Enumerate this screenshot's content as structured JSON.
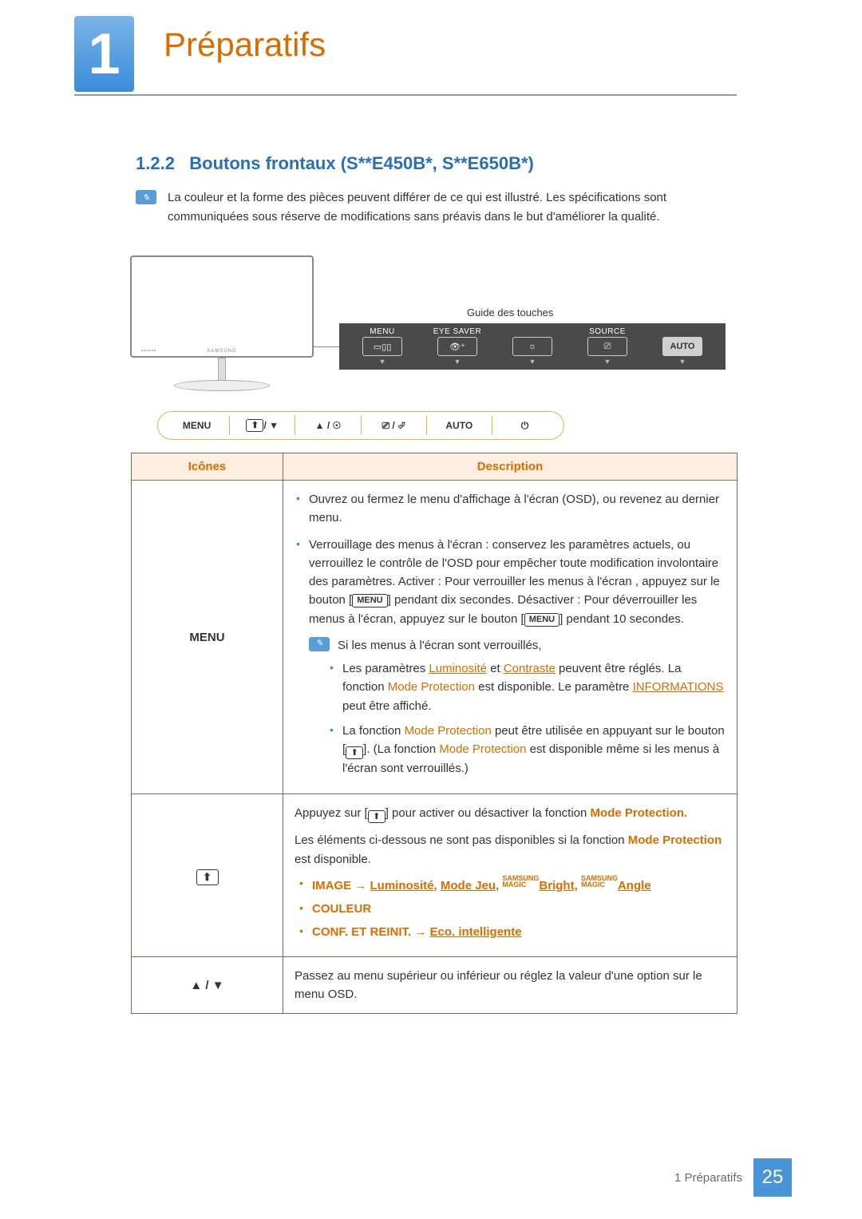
{
  "chapter": {
    "number": "1",
    "title": "Préparatifs"
  },
  "section": {
    "number": "1.2.2",
    "title": "Boutons frontaux (S**E450B*, S**E650B*)"
  },
  "note": "La couleur et la forme des pièces peuvent différer de ce qui est illustré. Les spécifications sont communiquées sous réserve de modifications sans préavis dans le but d'améliorer la qualité.",
  "diagram": {
    "touch_guide_label": "Guide des touches",
    "osd_items": [
      {
        "label": "MENU",
        "icon": "▭▯▯"
      },
      {
        "label": "EYE SAVER",
        "icon": "👁⁺"
      },
      {
        "label": "",
        "icon": "☼"
      },
      {
        "label": "SOURCE",
        "icon": "⎚"
      },
      {
        "label": "",
        "icon": "AUTO",
        "auto": true
      }
    ],
    "buttons": [
      "MENU",
      "icon-eye",
      "▲ / ☉",
      "⎚ / ⏎",
      "AUTO",
      "⏻"
    ]
  },
  "table": {
    "headers": [
      "Icônes",
      "Description"
    ],
    "row1": {
      "icon": "MENU",
      "b1": "Ouvrez ou fermez le menu d'affichage à l'écran (OSD), ou revenez au dernier menu.",
      "b2_a": "Verrouillage des menus à l'écran : conservez les paramètres actuels, ou verrouillez le contrôle de l'OSD pour empêcher toute modification involontaire des paramètres. Activer : Pour verrouiller les menus à l'écran , appuyez sur le bouton [",
      "b2_b": "] pendant dix secondes. Désactiver : Pour déverrouiller les menus à l'écran, appuyez sur le bouton [",
      "b2_c": "] pendant 10 secondes.",
      "subnote": "Si les menus à l'écran sont verrouillés,",
      "ib1_a": "Les paramètres ",
      "ib1_lum": "Luminosité",
      "ib1_et": " et ",
      "ib1_con": "Contraste",
      "ib1_b": " peuvent être réglés. La fonction ",
      "ib1_mp": "Mode Protection",
      "ib1_c": " est disponible. Le paramètre ",
      "ib1_info": "INFORMATIONS",
      "ib1_d": " peut être affiché.",
      "ib2_a": "La fonction ",
      "ib2_mp": "Mode Protection",
      "ib2_b": " peut être utilisée en appuyant sur le bouton [",
      "ib2_c": "]. (La fonction ",
      "ib2_mp2": "Mode Protection",
      "ib2_d": " est disponible même si les menus à l'écran sont verrouillés.)"
    },
    "row2": {
      "p1_a": "Appuyez sur [",
      "p1_b": "] pour activer ou désactiver la fonction ",
      "p1_mp": "Mode Protection",
      "p1_c": ".",
      "p2_a": "Les éléments ci-dessous ne sont pas disponibles si la fonction ",
      "p2_mp": "Mode Protection",
      "p2_b": " est disponible.",
      "li1_image": "IMAGE",
      "li1_arrow": " → ",
      "li1_lum": "Luminosité",
      "li1_c1": ", ",
      "li1_mj": "Mode Jeu",
      "li1_bright": "Bright",
      "li1_angle": "Angle",
      "li2": "COULEUR",
      "li3_a": "CONF. ET REINIT.",
      "li3_arrow": " → ",
      "li3_eco": "Eco. intelligente"
    },
    "row3": {
      "icon": "▲ / ▼",
      "text": "Passez au menu supérieur ou inférieur ou réglez la valeur d'une option sur le menu OSD."
    }
  },
  "footer": {
    "text": "1 Préparatifs",
    "page": "25"
  },
  "misc": {
    "menu_chip": "MENU",
    "samsung": "SAMSUNG",
    "magic": "MAGIC"
  },
  "colors": {
    "accent_orange": "#d96c00",
    "accent_blue": "#3a8cd8",
    "header_bg": "#fdeee1",
    "border": "#7a6a55"
  }
}
